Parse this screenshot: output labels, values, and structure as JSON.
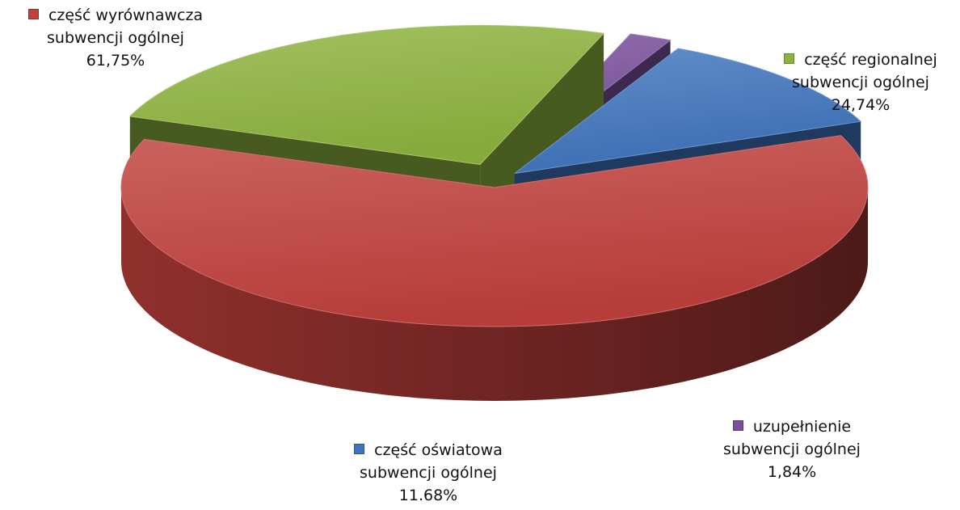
{
  "chart_data": {
    "type": "pie",
    "style": "3d-exploded",
    "legend": "labels-next-to-slices",
    "slices": [
      {
        "label_line1": "część wyrównawcza",
        "label_line2": "subwencji ogólnej",
        "value_text": "61,75%",
        "value": 61.75,
        "color": "#c0403c"
      },
      {
        "label_line1": "część regionalnej",
        "label_line2": "subwencji ogólnej",
        "value_text": "24,74%",
        "value": 24.74,
        "color": "#8db33e"
      },
      {
        "label_line1": "uzupełnienie",
        "label_line2": "subwencji ogólnej",
        "value_text": "1,84%",
        "value": 1.84,
        "color": "#7a4f9c"
      },
      {
        "label_line1": "część oświatowa",
        "label_line2": "subwencji ogólnej",
        "value_text": "11.68%",
        "value": 11.68,
        "color": "#3f74bd"
      }
    ]
  }
}
